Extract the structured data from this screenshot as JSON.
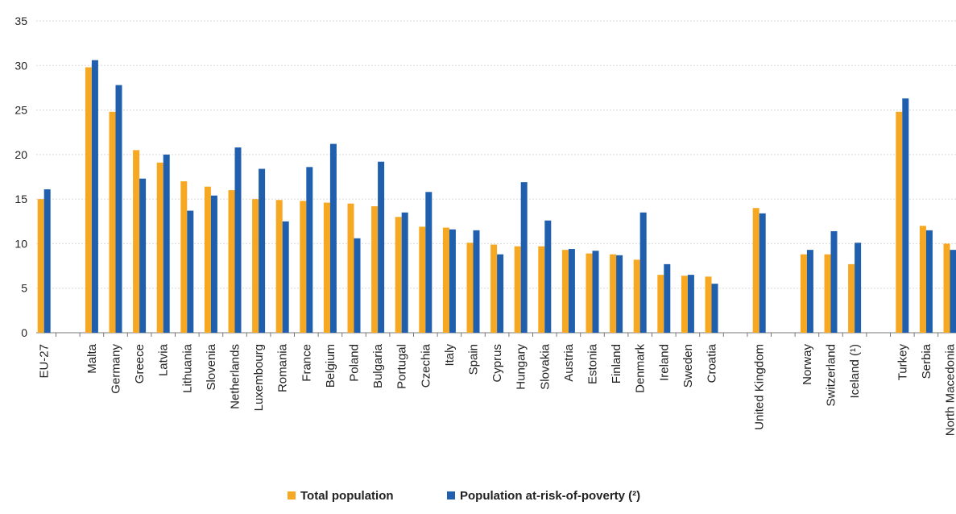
{
  "chart_data": {
    "type": "bar",
    "title": "",
    "xlabel": "",
    "ylabel": "",
    "ylim": [
      0,
      35
    ],
    "yticks": [
      0,
      5,
      10,
      15,
      20,
      25,
      30,
      35
    ],
    "grid": true,
    "legend_position": "bottom",
    "categories": [
      "EU-27",
      "",
      "Malta",
      "Germany",
      "Greece",
      "Latvia",
      "Lithuania",
      "Slovenia",
      "Netherlands",
      "Luxembourg",
      "Romania",
      "France",
      "Belgium",
      "Poland",
      "Bulgaria",
      "Portugal",
      "Czechia",
      "Italy",
      "Spain",
      "Cyprus",
      "Hungary",
      "Slovakia",
      "Austria",
      "Estonia",
      "Finland",
      "Denmark",
      "Ireland",
      "Sweden",
      "Croatia",
      "",
      "United Kingdom",
      "",
      "Norway",
      "Switzerland",
      "Iceland (¹)",
      "",
      "Turkey",
      "Serbia",
      "North Macedonia"
    ],
    "series": [
      {
        "name": "Total population",
        "color": "#F7A823",
        "values": [
          15.0,
          null,
          29.8,
          24.8,
          20.5,
          19.1,
          17.0,
          16.4,
          16.0,
          15.0,
          14.9,
          14.8,
          14.6,
          14.5,
          14.2,
          13.0,
          11.9,
          11.8,
          10.1,
          9.9,
          9.7,
          9.7,
          9.3,
          8.9,
          8.8,
          8.2,
          6.5,
          6.4,
          6.3,
          null,
          14.0,
          null,
          8.8,
          8.8,
          7.7,
          null,
          24.8,
          12.0,
          10.0
        ]
      },
      {
        "name": "Population at-risk-of-poverty (²)",
        "color": "#1F5FAD",
        "values": [
          16.1,
          null,
          30.6,
          27.8,
          17.3,
          20.0,
          13.7,
          15.4,
          20.8,
          18.4,
          12.5,
          18.6,
          21.2,
          10.6,
          19.2,
          13.5,
          15.8,
          11.6,
          11.5,
          8.8,
          16.9,
          12.6,
          9.4,
          9.2,
          8.7,
          13.5,
          7.7,
          6.5,
          5.5,
          null,
          13.4,
          null,
          9.3,
          11.4,
          10.1,
          null,
          26.3,
          11.5,
          9.3
        ]
      }
    ]
  }
}
